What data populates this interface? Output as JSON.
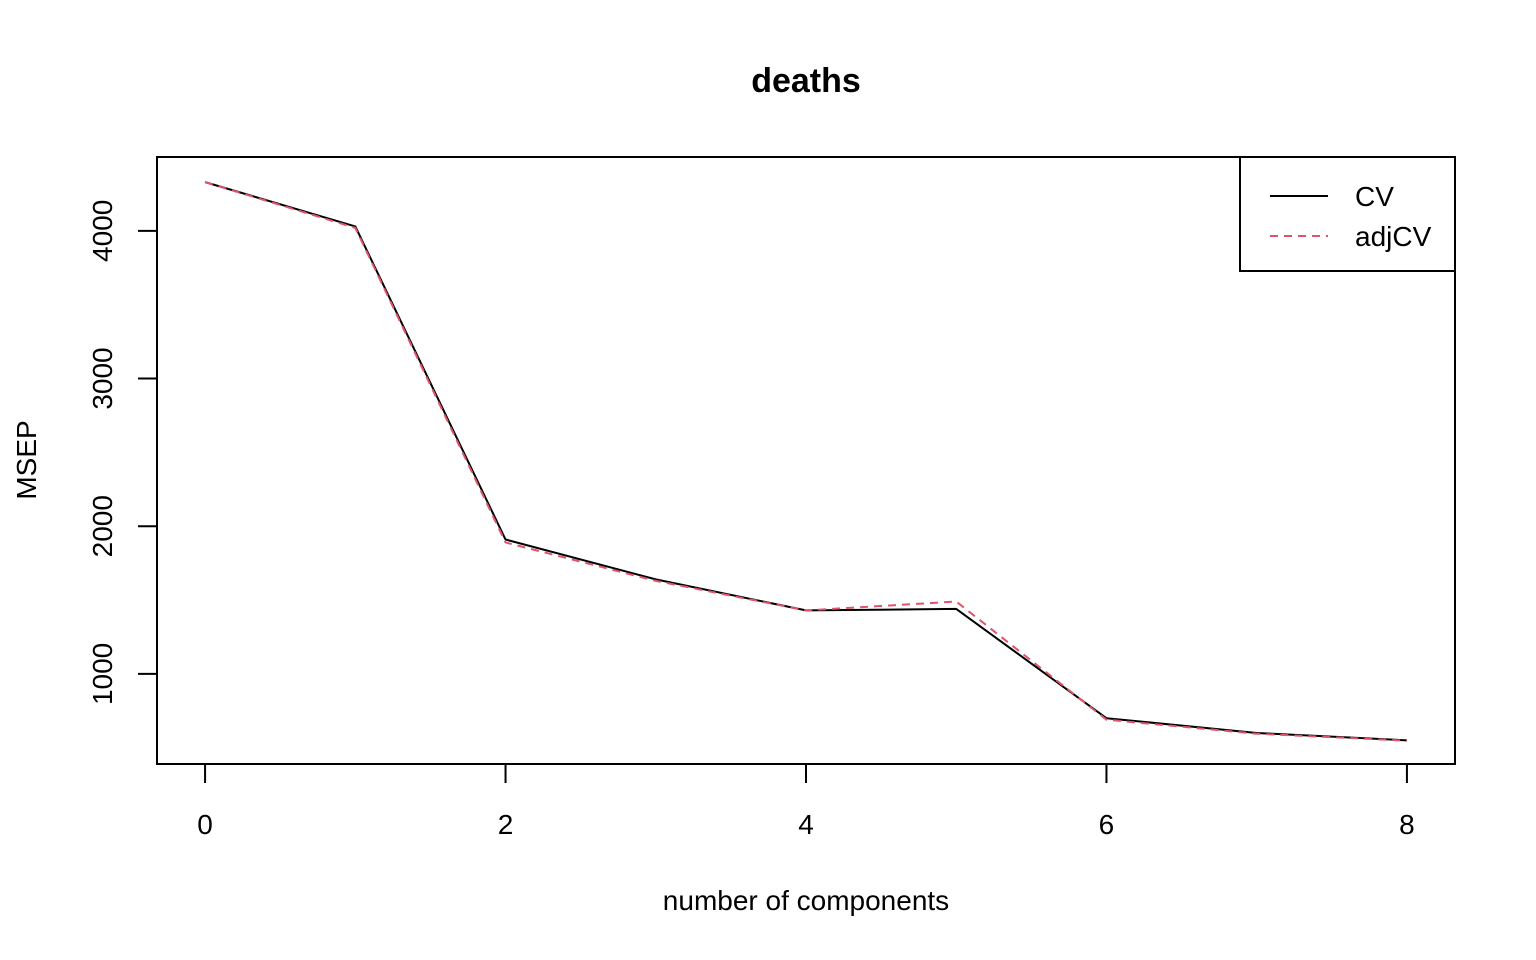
{
  "chart_data": {
    "type": "line",
    "title": "deaths",
    "xlabel": "number of components",
    "ylabel": "MSEP",
    "x": [
      0,
      1,
      2,
      3,
      4,
      5,
      6,
      7,
      8
    ],
    "xlim": [
      -0.32,
      8.32
    ],
    "ylim": [
      390,
      4500
    ],
    "xticks": [
      0,
      2,
      4,
      6,
      8
    ],
    "yticks": [
      1000,
      2000,
      3000,
      4000
    ],
    "grid": false,
    "legend_position": "top-right",
    "series": [
      {
        "name": "CV",
        "values": [
          4330,
          4030,
          1910,
          1640,
          1430,
          1440,
          700,
          600,
          550
        ],
        "color": "#000000",
        "dash": "solid"
      },
      {
        "name": "adjCV",
        "values": [
          4330,
          4020,
          1890,
          1630,
          1430,
          1490,
          690,
          595,
          548
        ],
        "color": "#DF536B",
        "dash": "dashed"
      }
    ]
  }
}
